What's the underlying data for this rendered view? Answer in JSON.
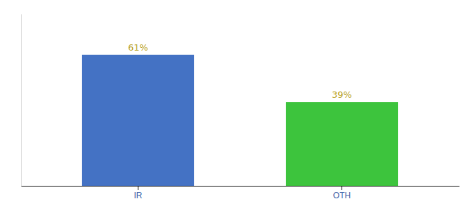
{
  "chart_data": {
    "type": "bar",
    "categories": [
      "IR",
      "OTH"
    ],
    "values": [
      61,
      39
    ],
    "colors": [
      "#4472c4",
      "#3dc43d"
    ],
    "ylim": [
      0,
      80
    ],
    "data_labels": true,
    "value_labels": [
      "61%",
      "39%"
    ],
    "tick_labels": "x",
    "grid": false
  }
}
